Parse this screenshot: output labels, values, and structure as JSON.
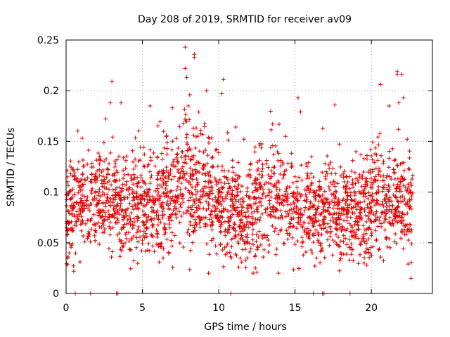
{
  "chart_data": {
    "type": "scatter",
    "title": "Day 208 of 2019, SRMTID for receiver av09",
    "xlabel": "GPS time / hours",
    "ylabel": "SRMTID / TECUs",
    "xlim": [
      0,
      24
    ],
    "ylim": [
      0,
      0.25
    ],
    "x_ticks": [
      0,
      5,
      10,
      15,
      20
    ],
    "x_tick_labels": [
      "0",
      "5",
      "10",
      "15",
      "20"
    ],
    "y_ticks": [
      0,
      0.05,
      0.1,
      0.15,
      0.2,
      0.25
    ],
    "y_tick_labels": [
      "0",
      "0.05",
      "0.1",
      "0.15",
      "0.2",
      "0.25"
    ],
    "grid": true,
    "marker": "+",
    "color": "#e00000",
    "series": [
      {
        "name": "SRMTID",
        "point_count_estimate": 2400,
        "profile": {
          "hours": [
            0,
            1,
            2,
            3,
            4,
            5,
            6,
            7,
            8,
            9,
            10,
            11,
            12,
            13,
            14,
            15,
            16,
            17,
            18,
            19,
            20,
            21,
            22,
            22.7
          ],
          "median": [
            0.075,
            0.09,
            0.095,
            0.09,
            0.085,
            0.085,
            0.09,
            0.1,
            0.11,
            0.1,
            0.085,
            0.08,
            0.075,
            0.09,
            0.1,
            0.09,
            0.08,
            0.085,
            0.08,
            0.075,
            0.085,
            0.085,
            0.09,
            0.085
          ],
          "spread": [
            0.03,
            0.03,
            0.03,
            0.03,
            0.03,
            0.03,
            0.035,
            0.04,
            0.04,
            0.035,
            0.03,
            0.03,
            0.03,
            0.035,
            0.035,
            0.03,
            0.03,
            0.03,
            0.03,
            0.03,
            0.035,
            0.035,
            0.035,
            0.03
          ]
        },
        "notable_points": [
          {
            "x": 7.8,
            "y": 0.243
          },
          {
            "x": 8.4,
            "y": 0.236
          },
          {
            "x": 8.4,
            "y": 0.233
          },
          {
            "x": 7.8,
            "y": 0.222
          },
          {
            "x": 7.9,
            "y": 0.213
          },
          {
            "x": 10.3,
            "y": 0.211
          },
          {
            "x": 3.0,
            "y": 0.209
          },
          {
            "x": 21.7,
            "y": 0.219
          },
          {
            "x": 21.7,
            "y": 0.216
          },
          {
            "x": 22.0,
            "y": 0.216
          },
          {
            "x": 20.6,
            "y": 0.206
          },
          {
            "x": 9.2,
            "y": 0.2
          },
          {
            "x": 8.1,
            "y": 0.196
          },
          {
            "x": 15.2,
            "y": 0.193
          },
          {
            "x": 22.1,
            "y": 0.193
          },
          {
            "x": 10.2,
            "y": 0.197
          },
          {
            "x": 5.5,
            "y": 0.185
          },
          {
            "x": 3.6,
            "y": 0.188
          },
          {
            "x": 17.6,
            "y": 0.186
          },
          {
            "x": 2.9,
            "y": 0.188
          },
          {
            "x": 21.8,
            "y": 0.188
          },
          {
            "x": 0.5,
            "y": 0.022
          },
          {
            "x": 12.4,
            "y": 0.025
          },
          {
            "x": 16.3,
            "y": 0.027
          },
          {
            "x": 22.6,
            "y": 0.015
          },
          {
            "x": 22.4,
            "y": 0.029
          },
          {
            "x": 6.1,
            "y": 0.031
          },
          {
            "x": 19.7,
            "y": 0.028
          },
          {
            "x": 11.5,
            "y": 0.031
          },
          {
            "x": 0.2,
            "y": 0.04
          }
        ],
        "zero_points": [
          0.6,
          1.6,
          3.3,
          3.4,
          10.8,
          16.2,
          16.8,
          16.9,
          18.6
        ]
      }
    ]
  }
}
